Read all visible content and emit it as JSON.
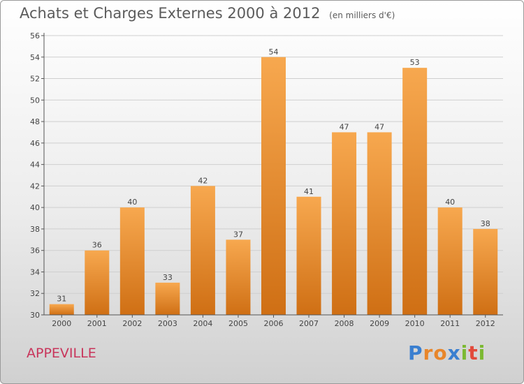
{
  "title": "Achats et Charges Externes 2000 à 2012",
  "unit_label": "(en milliers d'€)",
  "town": "APPEVILLE",
  "brand": {
    "letters": [
      "P",
      "r",
      "o",
      "x",
      "i",
      "t",
      "i"
    ],
    "colors": [
      "#3a7fd0",
      "#e8862a",
      "#e8862a",
      "#3a7fd0",
      "#7cb932",
      "#e24a3b",
      "#7cb932"
    ]
  },
  "colors": {
    "bar_light": "#f7a84f",
    "bar_dark": "#cf6f14",
    "axis": "#555555",
    "grid": "#cfcfcf",
    "text": "#444444"
  },
  "chart_data": {
    "type": "bar",
    "categories": [
      "2000",
      "2001",
      "2002",
      "2003",
      "2004",
      "2005",
      "2006",
      "2007",
      "2008",
      "2009",
      "2010",
      "2011",
      "2012"
    ],
    "values": [
      31,
      36,
      40,
      33,
      42,
      37,
      54,
      41,
      47,
      47,
      53,
      40,
      38
    ],
    "ylim": [
      30,
      56
    ],
    "yticks": [
      30,
      32,
      34,
      36,
      38,
      40,
      42,
      44,
      46,
      48,
      50,
      52,
      54,
      56
    ],
    "grid": true,
    "xlabel": "",
    "ylabel": ""
  }
}
